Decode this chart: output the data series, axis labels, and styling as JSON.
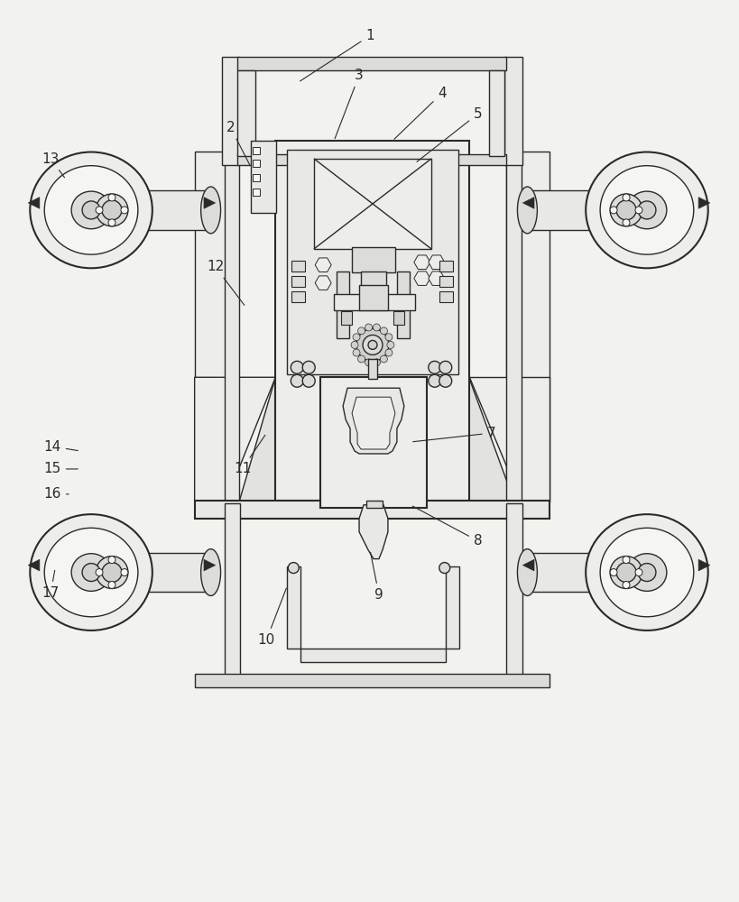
{
  "bg_color": "#f2f2ee",
  "line_color": "#2a2a2a",
  "fig_width": 8.19,
  "fig_height": 10.0,
  "lw": 1.0,
  "lw_thick": 1.5,
  "label_fs": 11,
  "labels": [
    [
      "1",
      410,
      38,
      330,
      90
    ],
    [
      "2",
      255,
      140,
      278,
      185
    ],
    [
      "3",
      398,
      82,
      370,
      155
    ],
    [
      "4",
      490,
      102,
      435,
      155
    ],
    [
      "5",
      530,
      125,
      460,
      180
    ],
    [
      "7",
      545,
      480,
      455,
      490
    ],
    [
      "8",
      530,
      600,
      455,
      560
    ],
    [
      "9",
      420,
      660,
      410,
      610
    ],
    [
      "10",
      295,
      710,
      318,
      650
    ],
    [
      "11",
      268,
      520,
      295,
      480
    ],
    [
      "12",
      238,
      295,
      272,
      340
    ],
    [
      "13",
      55,
      175,
      72,
      198
    ],
    [
      "14",
      57,
      495,
      88,
      500
    ],
    [
      "15",
      57,
      520,
      88,
      520
    ],
    [
      "16",
      57,
      548,
      75,
      548
    ],
    [
      "17",
      55,
      658,
      60,
      630
    ]
  ]
}
